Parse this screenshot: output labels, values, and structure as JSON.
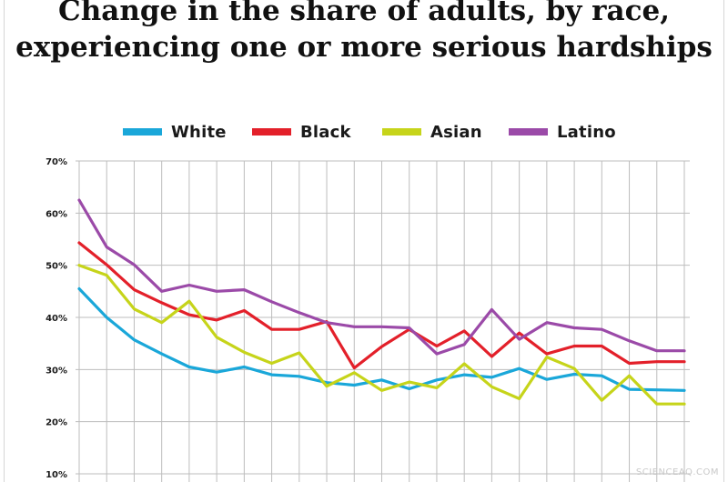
{
  "page": {
    "title_line1": "Change in the share of adults, by race,",
    "title_line2": "experiencing one or more serious hardships",
    "watermark": "SCIENCEAQ.COM"
  },
  "chart_data": {
    "type": "line",
    "title": "Change in the share of adults, by race, experiencing one or more serious hardships",
    "xlabel": "",
    "ylabel": "",
    "ylim": [
      10,
      70
    ],
    "yticks": [
      10,
      20,
      30,
      40,
      50,
      60,
      70
    ],
    "ytick_labels": [
      "10%",
      "20%",
      "30%",
      "40%",
      "50%",
      "60%",
      "70%"
    ],
    "x_count": 23,
    "grid": true,
    "legend_position": "top",
    "series": [
      {
        "name": "White",
        "color": "#1aa7d9",
        "values": [
          45.5,
          40,
          35.7,
          33,
          30.5,
          29.5,
          30.5,
          29,
          28.7,
          27.5,
          27,
          28,
          26.3,
          28,
          29,
          28.5,
          30.2,
          28.1,
          29.1,
          28.8,
          26.2,
          26.1,
          26
        ]
      },
      {
        "name": "Black",
        "color": "#e3202a",
        "values": [
          54.3,
          50.1,
          45.3,
          42.8,
          40.5,
          39.5,
          41.3,
          37.7,
          37.7,
          39.2,
          30.3,
          34.4,
          37.7,
          34.5,
          37.4,
          32.5,
          37,
          33,
          34.5,
          34.5,
          31.2,
          31.5,
          31.5
        ]
      },
      {
        "name": "Asian",
        "color": "#c6d41a",
        "values": [
          50,
          48.1,
          41.6,
          39,
          43.1,
          36.2,
          33.3,
          31.2,
          33.2,
          26.8,
          29.4,
          26,
          27.6,
          26.5,
          31.1,
          26.7,
          24.4,
          32.4,
          30.2,
          24.1,
          28.8,
          23.4,
          23.4
        ]
      },
      {
        "name": "Latino",
        "color": "#9b4aa8",
        "values": [
          62.5,
          53.5,
          50.1,
          45,
          46.2,
          45,
          45.3,
          43,
          40.9,
          39,
          38.2,
          38.2,
          38,
          33,
          34.8,
          41.5,
          35.8,
          39,
          38,
          37.7,
          35.5,
          33.6,
          33.6
        ]
      }
    ]
  }
}
